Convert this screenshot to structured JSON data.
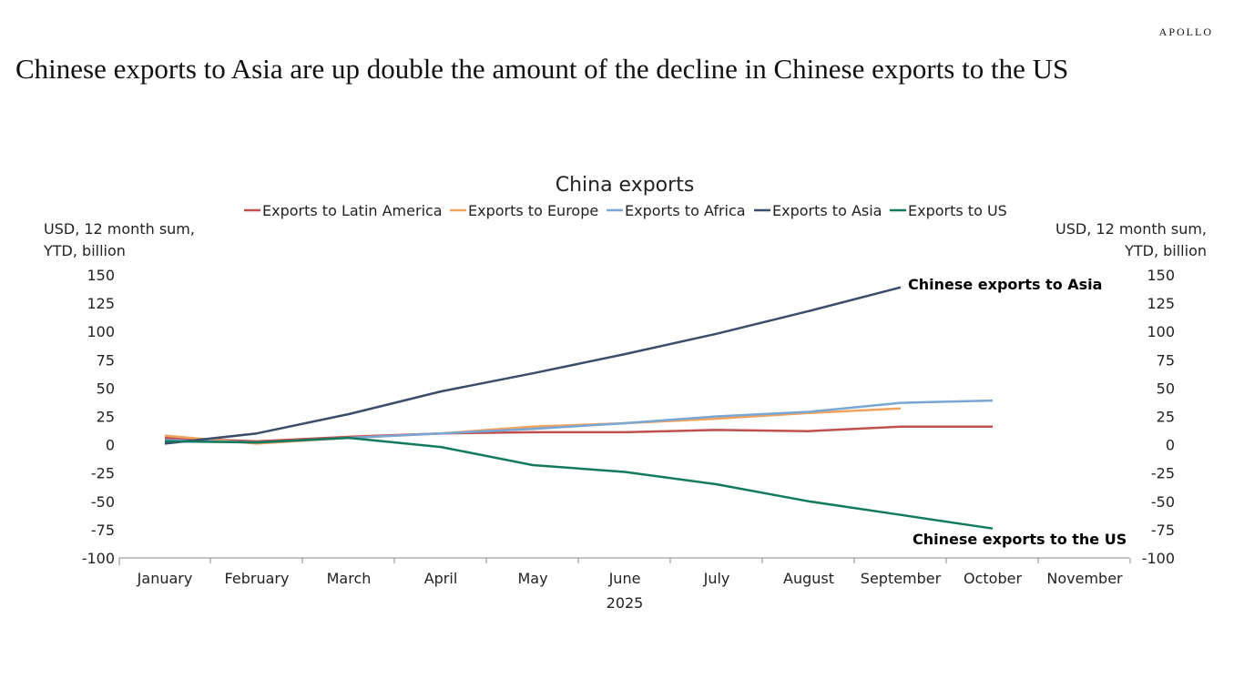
{
  "brand": "APOLLO",
  "headline": "Chinese exports to Asia are up double the amount of the decline in Chinese exports to the US",
  "chart_data": {
    "type": "line",
    "title": "China exports",
    "xlabel": "2025",
    "ylabel_left": "USD, 12 month sum, YTD, billion",
    "ylabel_right": "USD, 12 month sum, YTD, billion",
    "ylim": [
      -100,
      150
    ],
    "yticks": [
      150,
      125,
      100,
      75,
      50,
      25,
      0,
      -25,
      -50,
      -75,
      -100
    ],
    "categories": [
      "January",
      "February",
      "March",
      "April",
      "May",
      "June",
      "July",
      "August",
      "September",
      "October",
      "November"
    ],
    "legend_position": "top",
    "grid": false,
    "series": [
      {
        "name": "Exports to Latin America",
        "color": "#c0504d",
        "values": [
          6,
          3,
          7,
          10,
          11,
          11,
          13,
          12,
          16,
          16,
          null
        ]
      },
      {
        "name": "Exports to Europe",
        "color": "#f0a35e",
        "values": [
          8,
          1,
          6,
          10,
          16,
          19,
          23,
          28,
          32,
          null,
          null
        ]
      },
      {
        "name": "Exports to Africa",
        "color": "#7aa6d4",
        "values": [
          4,
          2,
          6,
          10,
          14,
          19,
          25,
          29,
          37,
          39,
          null
        ]
      },
      {
        "name": "Exports to Asia",
        "color": "#3b4d6b",
        "values": [
          1,
          10,
          27,
          47,
          63,
          80,
          98,
          118,
          139,
          null,
          null
        ]
      },
      {
        "name": "Exports to US",
        "color": "#137a5e",
        "values": [
          3,
          2,
          6,
          -2,
          -18,
          -24,
          -35,
          -50,
          -62,
          -74,
          null
        ]
      }
    ],
    "annotations": [
      "Chinese exports to Asia",
      "Chinese exports to the US"
    ]
  }
}
